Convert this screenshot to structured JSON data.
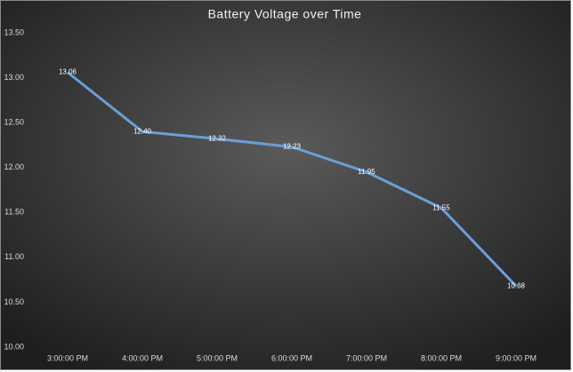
{
  "chart_data": {
    "type": "line",
    "title": "Battery Voltage over Time",
    "categories": [
      "3:00:00 PM",
      "4:00:00 PM",
      "5:00:00 PM",
      "6:00:00 PM",
      "7:00:00 PM",
      "8:00:00 PM",
      "9:00:00 PM"
    ],
    "values": [
      13.06,
      12.4,
      12.32,
      12.23,
      11.95,
      11.55,
      10.68
    ],
    "value_labels": [
      "13.06",
      "12.40",
      "12.32",
      "12.23",
      "11.95",
      "11.55",
      "10.68"
    ],
    "color": "#6a9fd8",
    "ylim": [
      10,
      13.5
    ],
    "yticks": [
      {
        "value": 10,
        "label": "10.00"
      },
      {
        "value": 10.5,
        "label": "10.50"
      },
      {
        "value": 11,
        "label": "11.00"
      },
      {
        "value": 11.5,
        "label": "11.50"
      },
      {
        "value": 12,
        "label": "12.00"
      },
      {
        "value": 12.5,
        "label": "12.50"
      },
      {
        "value": 13,
        "label": "13.00"
      },
      {
        "value": 13.5,
        "label": "13.50"
      }
    ]
  }
}
